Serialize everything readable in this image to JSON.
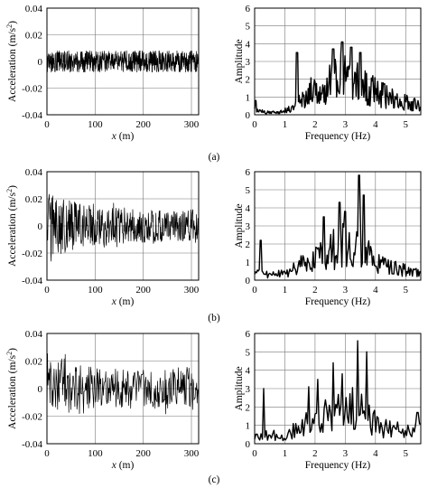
{
  "captions": [
    "(a)",
    "(b)",
    "(c)"
  ],
  "chart_data": [
    {
      "panel": "a-acceleration",
      "type": "line",
      "xlabel_var": "x",
      "xlabel_unit": " (m)",
      "ylabel_main": "Acceleration (m/s",
      "ylabel_exp": "2",
      "ylabel_end": ")",
      "xlim": [
        0,
        315
      ],
      "ylim": [
        -0.04,
        0.04
      ],
      "xticks": [
        0,
        100,
        200,
        300
      ],
      "yticks": [
        -0.04,
        -0.02,
        0,
        0.02,
        0.04
      ],
      "xtick_labels": [
        "0",
        "100",
        "200",
        "300"
      ],
      "ytick_labels": [
        "-0.04",
        "-0.02",
        "0",
        "0.02",
        "0.04"
      ],
      "grid": true,
      "signal": {
        "x_start": 0,
        "x_end": 315,
        "samples": 700,
        "amplitude_peak": 0.008,
        "envelope": [
          [
            0,
            0.008
          ],
          [
            315,
            0.008
          ]
        ]
      }
    },
    {
      "panel": "a-spectrum",
      "type": "line",
      "xlabel": "Frequency (Hz)",
      "ylabel": "Amplitude",
      "xlim": [
        0,
        5.5
      ],
      "ylim": [
        0,
        6
      ],
      "xticks": [
        0,
        1,
        2,
        3,
        4,
        5
      ],
      "yticks": [
        0,
        1,
        2,
        3,
        4,
        5,
        6
      ],
      "xtick_labels": [
        "0",
        "1",
        "2",
        "3",
        "4",
        "5"
      ],
      "ytick_labels": [
        "0",
        "1",
        "2",
        "3",
        "4",
        "5",
        "6"
      ],
      "grid": true,
      "spectrum": {
        "points": 240,
        "peaks": [
          [
            0.03,
            0.8
          ],
          [
            1.4,
            3.5
          ],
          [
            2.6,
            3.7
          ],
          [
            2.9,
            4.1
          ],
          [
            3.2,
            3.8
          ],
          [
            3.5,
            3.5
          ]
        ],
        "envelope": [
          [
            0,
            0.3
          ],
          [
            0.5,
            0.15
          ],
          [
            1.0,
            0.3
          ],
          [
            1.3,
            0.6
          ],
          [
            1.6,
            1.2
          ],
          [
            2.0,
            2.0
          ],
          [
            2.4,
            2.4
          ],
          [
            2.8,
            2.8
          ],
          [
            3.2,
            2.6
          ],
          [
            3.6,
            2.2
          ],
          [
            4.0,
            1.7
          ],
          [
            4.5,
            1.2
          ],
          [
            5.0,
            0.9
          ],
          [
            5.5,
            0.7
          ]
        ]
      }
    },
    {
      "panel": "b-acceleration",
      "type": "line",
      "xlabel_var": "x",
      "xlabel_unit": " (m)",
      "ylabel_main": "Acceleration (m/s",
      "ylabel_exp": "2",
      "ylabel_end": ")",
      "xlim": [
        0,
        315
      ],
      "ylim": [
        -0.04,
        0.04
      ],
      "xticks": [
        0,
        100,
        200,
        300
      ],
      "yticks": [
        -0.04,
        -0.02,
        0,
        0.02,
        0.04
      ],
      "xtick_labels": [
        "0",
        "100",
        "200",
        "300"
      ],
      "ytick_labels": [
        "-0.04",
        "-0.02",
        "0",
        "0.02",
        "0.04"
      ],
      "grid": true,
      "signal": {
        "x_start": 0,
        "x_end": 315,
        "samples": 420,
        "amplitude_peak": 0.026,
        "envelope": [
          [
            0,
            0.024
          ],
          [
            40,
            0.02
          ],
          [
            100,
            0.014
          ],
          [
            200,
            0.012
          ],
          [
            315,
            0.012
          ]
        ]
      }
    },
    {
      "panel": "b-spectrum",
      "type": "line",
      "xlabel": "Frequency (Hz)",
      "ylabel": "Amplitude",
      "xlim": [
        0,
        5.5
      ],
      "ylim": [
        0,
        6
      ],
      "xticks": [
        0,
        1,
        2,
        3,
        4,
        5
      ],
      "yticks": [
        0,
        1,
        2,
        3,
        4,
        5,
        6
      ],
      "xtick_labels": [
        "0",
        "1",
        "2",
        "3",
        "4",
        "5"
      ],
      "ytick_labels": [
        "0",
        "1",
        "2",
        "3",
        "4",
        "5",
        "6"
      ],
      "grid": true,
      "spectrum": {
        "points": 180,
        "peaks": [
          [
            0.2,
            2.2
          ],
          [
            2.3,
            3.5
          ],
          [
            2.8,
            4.3
          ],
          [
            3.0,
            3.8
          ],
          [
            3.45,
            5.8
          ],
          [
            3.6,
            4.7
          ]
        ],
        "envelope": [
          [
            0,
            0.5
          ],
          [
            0.5,
            0.4
          ],
          [
            1.0,
            0.5
          ],
          [
            1.5,
            1.1
          ],
          [
            2.0,
            1.6
          ],
          [
            2.5,
            2.2
          ],
          [
            3.0,
            2.6
          ],
          [
            3.5,
            2.6
          ],
          [
            4.0,
            1.3
          ],
          [
            4.5,
            0.9
          ],
          [
            5.0,
            0.7
          ],
          [
            5.5,
            0.5
          ]
        ]
      }
    },
    {
      "panel": "c-acceleration",
      "type": "line",
      "xlabel_var": "x",
      "xlabel_unit": " (m)",
      "ylabel_main": "Acceleration (m/s",
      "ylabel_exp": "2",
      "ylabel_end": ")",
      "xlim": [
        0,
        315
      ],
      "ylim": [
        -0.04,
        0.04
      ],
      "xticks": [
        0,
        100,
        200,
        300
      ],
      "yticks": [
        -0.04,
        -0.02,
        0,
        0.02,
        0.04
      ],
      "xtick_labels": [
        "0",
        "100",
        "200",
        "300"
      ],
      "ytick_labels": [
        "-0.04",
        "-0.02",
        "0",
        "0.02",
        "0.04"
      ],
      "grid": true,
      "signal": {
        "x_start": 0,
        "x_end": 315,
        "samples": 300,
        "amplitude_peak": 0.03,
        "envelope": [
          [
            0,
            0.026
          ],
          [
            40,
            0.022
          ],
          [
            100,
            0.015
          ],
          [
            200,
            0.014
          ],
          [
            315,
            0.016
          ]
        ]
      }
    },
    {
      "panel": "c-spectrum",
      "type": "line",
      "xlabel": "Frequency (Hz)",
      "ylabel": "Amplitude",
      "xlim": [
        0,
        5.5
      ],
      "ylim": [
        0,
        6
      ],
      "xticks": [
        0,
        1,
        2,
        3,
        4,
        5
      ],
      "yticks": [
        0,
        1,
        2,
        3,
        4,
        5,
        6
      ],
      "xtick_labels": [
        "0",
        "1",
        "2",
        "3",
        "4",
        "5"
      ],
      "ytick_labels": [
        "0",
        "1",
        "2",
        "3",
        "4",
        "5",
        "6"
      ],
      "grid": true,
      "spectrum": {
        "points": 130,
        "peaks": [
          [
            0.3,
            3.0
          ],
          [
            1.8,
            3.1
          ],
          [
            2.1,
            3.5
          ],
          [
            2.6,
            4.4
          ],
          [
            2.9,
            3.8
          ],
          [
            3.4,
            5.6
          ],
          [
            3.7,
            5.0
          ],
          [
            5.4,
            1.7
          ]
        ],
        "envelope": [
          [
            0,
            0.5
          ],
          [
            0.5,
            0.6
          ],
          [
            1.0,
            0.6
          ],
          [
            1.5,
            1.1
          ],
          [
            2.0,
            1.8
          ],
          [
            2.5,
            2.2
          ],
          [
            3.0,
            2.4
          ],
          [
            3.5,
            2.5
          ],
          [
            4.0,
            1.4
          ],
          [
            4.5,
            1.0
          ],
          [
            5.0,
            1.0
          ],
          [
            5.5,
            1.0
          ]
        ]
      }
    }
  ]
}
